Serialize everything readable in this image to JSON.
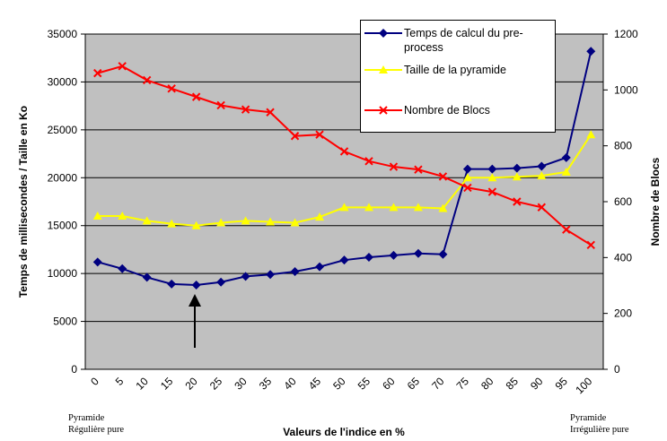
{
  "chart_data": {
    "type": "line",
    "x_label": "Valeurs de l'indice en %",
    "y_label": "Temps de millisecondes / Taille en Ko",
    "y2_label": "Nombre de Blocs",
    "categories": [
      "0",
      "5",
      "10",
      "15",
      "20",
      "25",
      "30",
      "35",
      "40",
      "45",
      "50",
      "55",
      "60",
      "65",
      "70",
      "75",
      "80",
      "85",
      "90",
      "95",
      "100"
    ],
    "series": [
      {
        "name": "Temps de calcul du pre-\nprocess",
        "color": "#000080",
        "marker": "diamond",
        "values": [
          11200,
          10500,
          9600,
          8900,
          8800,
          9100,
          9700,
          9900,
          10200,
          10700,
          11400,
          11700,
          11900,
          12100,
          12000,
          20900,
          20900,
          21000,
          21200,
          22100,
          33200
        ]
      },
      {
        "name": "Taille de la pyramide",
        "color": "#ffff00",
        "marker": "triangle",
        "values": [
          16000,
          16000,
          15500,
          15200,
          15000,
          15300,
          15500,
          15400,
          15300,
          15900,
          16900,
          16900,
          16900,
          16900,
          16800,
          20000,
          20000,
          20100,
          20200,
          20600,
          24500
        ]
      },
      {
        "name": "Nombre de Blocs",
        "color": "#ff0000",
        "marker": "x",
        "axis": "y2",
        "values": [
          1060,
          1085,
          1035,
          1005,
          975,
          945,
          930,
          920,
          835,
          840,
          780,
          745,
          725,
          715,
          690,
          650,
          635,
          600,
          580,
          500,
          445
        ]
      }
    ],
    "ylim": [
      0,
      35000
    ],
    "yticks": [
      0,
      5000,
      10000,
      15000,
      20000,
      25000,
      30000,
      35000
    ],
    "y2lim": [
      0,
      1200
    ],
    "y2ticks": [
      0,
      200,
      400,
      600,
      800,
      1000,
      1200
    ],
    "grid": true,
    "annotations": [
      "Pyramide\nRégulière pure",
      "Pyramide\nIrrégulière pure"
    ]
  }
}
